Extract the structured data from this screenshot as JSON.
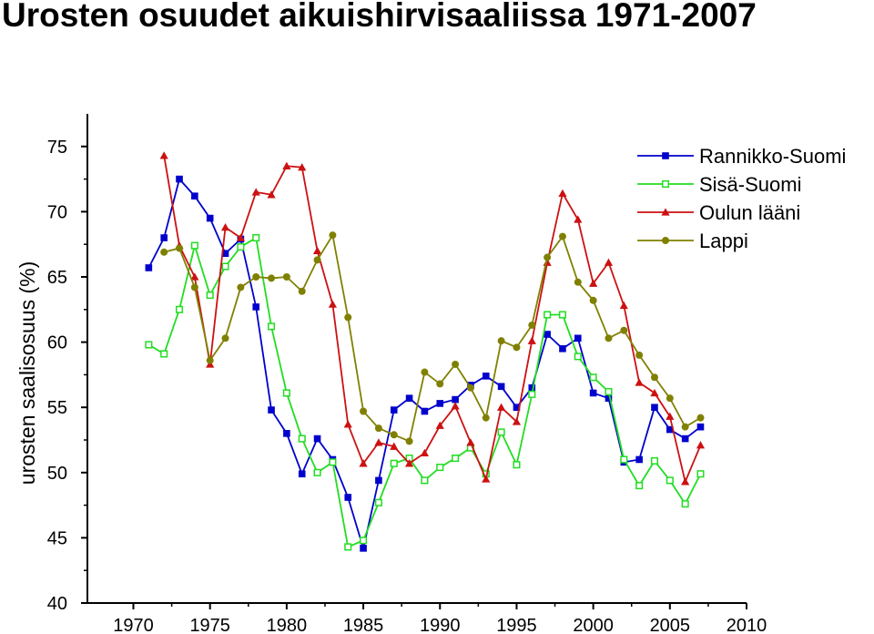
{
  "title": "Urosten osuudet aikuishirvisaaliissa 1971-2007",
  "chart_data": {
    "type": "line",
    "title": "Urosten osuudet aikuishirvisaaliissa 1971-2007",
    "xlabel": "",
    "ylabel": "urosten saalisosuus (%)",
    "xlim": [
      1967,
      2010
    ],
    "ylim": [
      40,
      77.5
    ],
    "xticks": [
      1970,
      1975,
      1980,
      1985,
      1990,
      1995,
      2000,
      2005,
      2010
    ],
    "yticks": [
      40,
      45,
      50,
      55,
      60,
      65,
      70,
      75
    ],
    "grid": false,
    "legend_position": "top-right",
    "x": [
      1971,
      1972,
      1973,
      1974,
      1975,
      1976,
      1977,
      1978,
      1979,
      1980,
      1981,
      1982,
      1983,
      1984,
      1985,
      1986,
      1987,
      1988,
      1989,
      1990,
      1991,
      1992,
      1993,
      1994,
      1995,
      1996,
      1997,
      1998,
      1999,
      2000,
      2001,
      2002,
      2003,
      2004,
      2005,
      2006,
      2007
    ],
    "series": [
      {
        "name": "Rannikko-Suomi",
        "color": "#0000cc",
        "marker": "square-filled",
        "values": [
          65.7,
          68.0,
          72.5,
          71.2,
          69.5,
          66.8,
          67.9,
          62.7,
          54.8,
          53.0,
          49.9,
          52.6,
          51.0,
          48.1,
          44.2,
          49.4,
          54.8,
          55.7,
          54.7,
          55.3,
          55.6,
          56.7,
          57.4,
          56.6,
          55.0,
          56.5,
          60.6,
          59.5,
          60.3,
          56.1,
          55.7,
          50.8,
          51.0,
          55.0,
          53.3,
          52.6,
          53.5
        ]
      },
      {
        "name": "Sisä-Suomi",
        "color": "#22dd22",
        "marker": "square-open",
        "values": [
          59.8,
          59.1,
          62.5,
          67.4,
          63.6,
          65.8,
          67.3,
          68.0,
          61.2,
          56.1,
          52.6,
          50.0,
          50.8,
          44.3,
          44.8,
          47.7,
          50.7,
          51.1,
          49.4,
          50.4,
          51.1,
          51.9,
          49.9,
          53.1,
          50.6,
          56.0,
          62.1,
          62.1,
          58.9,
          57.3,
          56.2,
          51.0,
          49.0,
          50.9,
          49.4,
          47.6,
          49.9
        ]
      },
      {
        "name": "Oulun lääni",
        "color": "#cc1111",
        "marker": "triangle-filled",
        "values": [
          null,
          74.3,
          67.4,
          65.0,
          58.3,
          68.8,
          68.0,
          71.5,
          71.3,
          73.5,
          73.4,
          67.0,
          62.9,
          53.7,
          50.7,
          52.3,
          52.0,
          50.7,
          51.5,
          53.6,
          55.1,
          52.3,
          49.5,
          55.0,
          53.9,
          60.1,
          66.1,
          71.4,
          69.4,
          64.5,
          66.1,
          62.8,
          56.9,
          56.1,
          54.3,
          49.3,
          52.1
        ]
      },
      {
        "name": "Lappi",
        "color": "#808000",
        "marker": "circle-filled",
        "values": [
          null,
          66.9,
          67.2,
          64.2,
          58.6,
          60.3,
          64.2,
          65.0,
          64.9,
          65.0,
          63.9,
          66.3,
          68.2,
          61.9,
          54.7,
          53.4,
          52.9,
          52.4,
          57.7,
          56.8,
          58.3,
          56.5,
          54.2,
          60.1,
          59.6,
          61.3,
          66.5,
          68.1,
          64.6,
          63.2,
          60.3,
          60.9,
          59.0,
          57.3,
          55.7,
          53.5,
          54.2
        ]
      }
    ]
  }
}
